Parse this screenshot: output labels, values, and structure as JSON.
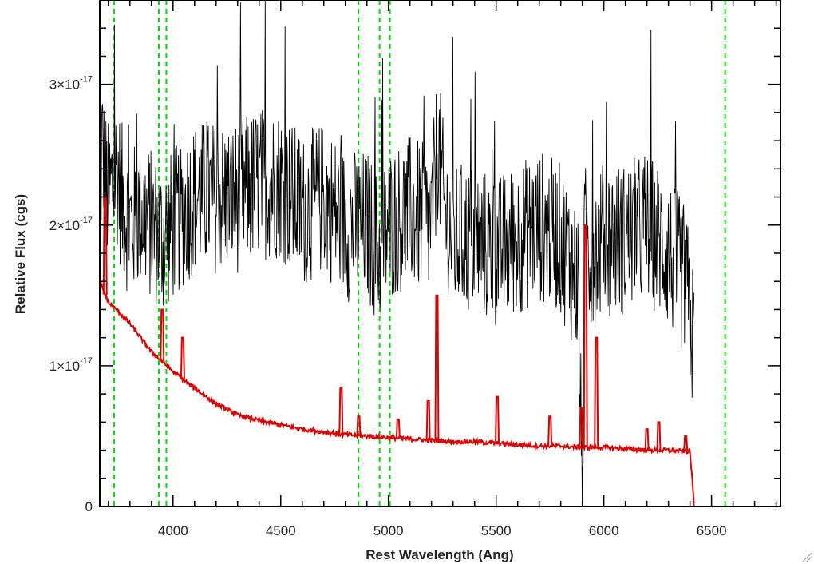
{
  "chart_data": {
    "type": "line",
    "title": "",
    "xlabel": "Rest Wavelength (Ang)",
    "ylabel": "Relative Flux (cgs)",
    "xlim": [
      3660,
      6820
    ],
    "ylim": [
      0,
      3.6e-17
    ],
    "x_ticks": [
      {
        "value": 4000,
        "label": "4000"
      },
      {
        "value": 4500,
        "label": "4500"
      },
      {
        "value": 5000,
        "label": "5000"
      },
      {
        "value": 5500,
        "label": "5500"
      },
      {
        "value": 6000,
        "label": "6000"
      },
      {
        "value": 6500,
        "label": "6500"
      }
    ],
    "y_ticks": [
      {
        "value": 0,
        "base": "0",
        "exp": ""
      },
      {
        "value": 1e-17,
        "base": "1×10",
        "exp": "-17"
      },
      {
        "value": 2e-17,
        "base": "2×10",
        "exp": "-17"
      },
      {
        "value": 3e-17,
        "base": "3×10",
        "exp": "-17"
      }
    ],
    "grid": false,
    "legend": "none",
    "colors": {
      "spectrum": "#000000",
      "template": "#dd0000",
      "lines": "#00dd00"
    },
    "vertical_lines": [
      3727,
      3934,
      3969,
      4861,
      4959,
      5007,
      6563
    ],
    "series": [
      {
        "color": "#000000",
        "x": [
          3660,
          3670,
          3685,
          3700,
          3720,
          3740,
          3760,
          3780,
          3800,
          3850,
          3900,
          3950,
          4000,
          4050,
          4100,
          4200,
          4300,
          4400,
          4500,
          4600,
          4700,
          4800,
          4900,
          4960,
          5000,
          5100,
          5200,
          5230,
          5260,
          5300,
          5400,
          5500,
          5600,
          5700,
          5800,
          5880,
          5900,
          5910,
          5940,
          6000,
          6100,
          6200,
          6300,
          6380,
          6420
        ],
        "y": [
          2e-17,
          2.6e-17,
          2.3e-17,
          2.2e-17,
          2.3e-17,
          2.4e-17,
          2.2e-17,
          2.1e-17,
          2e-17,
          2.1e-17,
          2e-17,
          1.9e-17,
          2e-17,
          2.1e-17,
          2.2e-17,
          2.2e-17,
          2.2e-17,
          2.3e-17,
          2.3e-17,
          2.1e-17,
          2.2e-17,
          2e-17,
          2e-17,
          1.8e-17,
          2e-17,
          2.1e-17,
          2e-17,
          2.6e-17,
          2.1e-17,
          1.9e-17,
          1.9e-17,
          1.8e-17,
          1.9e-17,
          2e-17,
          1.9e-17,
          1.6e-17,
          0.0,
          1.9e-17,
          1.8e-17,
          1.9e-17,
          1.9e-17,
          2e-17,
          1.8e-17,
          1.6e-17,
          1.1e-17
        ]
      },
      {
        "color": "#dd0000",
        "x": [
          3660,
          3700,
          3750,
          3800,
          3850,
          3900,
          3950,
          4000,
          4050,
          4100,
          4200,
          4300,
          4400,
          4500,
          4600,
          4700,
          4800,
          4900,
          5000,
          5100,
          5200,
          5300,
          5400,
          5500,
          5600,
          5700,
          5800,
          5900,
          6000,
          6100,
          6200,
          6300,
          6400,
          6420,
          6820
        ],
        "y": [
          1.6e-17,
          1.45e-17,
          1.38e-17,
          1.3e-17,
          1.2e-17,
          1.1e-17,
          1.03e-17,
          9.6e-18,
          9e-18,
          8.4e-18,
          7.3e-18,
          6.5e-18,
          6.1e-18,
          5.8e-18,
          5.5e-18,
          5.3e-18,
          5.1e-18,
          5e-18,
          4.9e-18,
          4.8e-18,
          4.7e-18,
          4.6e-18,
          4.6e-18,
          4.5e-18,
          4.4e-18,
          4.3e-18,
          4.3e-18,
          4.2e-18,
          4.2e-18,
          4.1e-18,
          4e-18,
          4e-18,
          3.9e-18,
          0,
          0
        ]
      }
    ],
    "emission_spikes": [
      {
        "x": 3685,
        "peak": 2.2e-17
      },
      {
        "x": 3950,
        "peak": 1.4e-17
      },
      {
        "x": 4045,
        "peak": 1.2e-17
      },
      {
        "x": 4780,
        "peak": 8.4e-18
      },
      {
        "x": 4862,
        "peak": 6.4e-18
      },
      {
        "x": 5045,
        "peak": 6.2e-18
      },
      {
        "x": 5185,
        "peak": 7.5e-18
      },
      {
        "x": 5225,
        "peak": 1.5e-17
      },
      {
        "x": 5505,
        "peak": 7.8e-18
      },
      {
        "x": 5750,
        "peak": 6.4e-18
      },
      {
        "x": 5895,
        "peak": 7e-18
      },
      {
        "x": 5915,
        "peak": 2e-17
      },
      {
        "x": 5965,
        "peak": 1.2e-17
      },
      {
        "x": 6200,
        "peak": 5.5e-18
      },
      {
        "x": 6255,
        "peak": 6e-18
      },
      {
        "x": 6380,
        "peak": 5e-18
      }
    ]
  },
  "window": {
    "resize_grip_icon": "resize-grip-icon"
  }
}
